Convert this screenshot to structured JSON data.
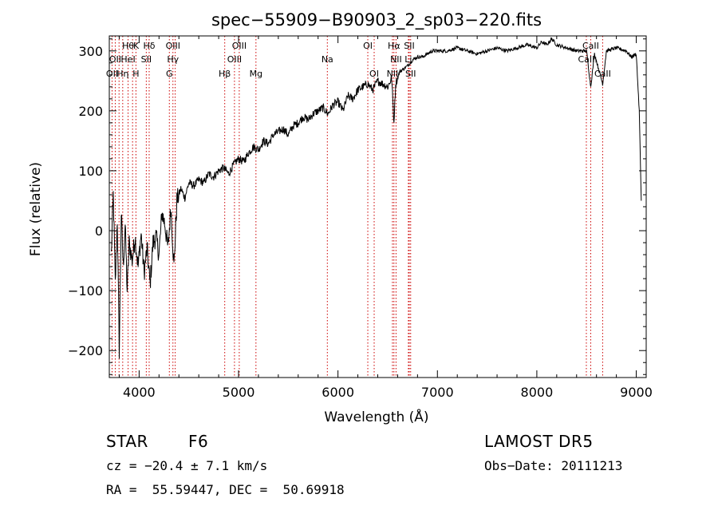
{
  "chart_data": {
    "type": "line",
    "title": "spec−55909−B90903_2_sp03−220.fits",
    "xlabel": "Wavelength (Å)",
    "ylabel": "Flux (relative)",
    "xlim": [
      3700,
      9100
    ],
    "ylim": [
      -245,
      325
    ],
    "xticks": [
      4000,
      5000,
      6000,
      7000,
      8000,
      9000
    ],
    "yticks": [
      -200,
      -100,
      0,
      100,
      200,
      300
    ],
    "ytick_labels": [
      "−200",
      "−100",
      "0",
      "100",
      "200",
      "300"
    ],
    "grid": false,
    "series": [
      {
        "color": "#000000",
        "x": [
          3720,
          3740,
          3760,
          3780,
          3800,
          3820,
          3840,
          3860,
          3880,
          3900,
          3930,
          3960,
          3990,
          4020,
          4050,
          4080,
          4110,
          4140,
          4170,
          4200,
          4230,
          4260,
          4290,
          4320,
          4350,
          4380,
          4420,
          4460,
          4500,
          4550,
          4600,
          4650,
          4700,
          4750,
          4800,
          4850,
          4900,
          4950,
          5000,
          5050,
          5100,
          5150,
          5200,
          5250,
          5300,
          5350,
          5400,
          5450,
          5500,
          5550,
          5600,
          5650,
          5700,
          5750,
          5800,
          5850,
          5900,
          5950,
          6000,
          6050,
          6100,
          6150,
          6200,
          6250,
          6300,
          6350,
          6400,
          6450,
          6500,
          6540,
          6563,
          6580,
          6620,
          6660,
          6700,
          6750,
          6800,
          6850,
          6900,
          6950,
          7000,
          7100,
          7200,
          7300,
          7400,
          7500,
          7600,
          7700,
          7800,
          7900,
          8000,
          8050,
          8100,
          8150,
          8200,
          8300,
          8400,
          8500,
          8542,
          8580,
          8662,
          8700,
          8800,
          8900,
          8950,
          9000,
          9030,
          9050
        ],
        "y": [
          -40,
          60,
          -90,
          20,
          -200,
          30,
          -60,
          10,
          -100,
          -20,
          -50,
          -10,
          -60,
          -5,
          -70,
          -30,
          -90,
          -20,
          -10,
          -40,
          30,
          10,
          -30,
          40,
          -60,
          50,
          70,
          55,
          80,
          75,
          85,
          80,
          95,
          90,
          100,
          105,
          95,
          110,
          120,
          115,
          130,
          140,
          135,
          150,
          145,
          160,
          165,
          170,
          160,
          175,
          180,
          190,
          185,
          195,
          200,
          205,
          195,
          210,
          215,
          200,
          225,
          220,
          235,
          240,
          245,
          235,
          250,
          245,
          240,
          255,
          180,
          245,
          265,
          270,
          275,
          285,
          290,
          290,
          295,
          300,
          300,
          300,
          305,
          300,
          295,
          300,
          305,
          300,
          305,
          310,
          305,
          315,
          310,
          320,
          310,
          305,
          300,
          300,
          240,
          295,
          245,
          300,
          305,
          300,
          290,
          295,
          200,
          50
        ]
      }
    ],
    "annotations": [
      {
        "row": 1,
        "x": 3890,
        "text": "Hθ"
      },
      {
        "row": 1,
        "x": 3970,
        "text": "K"
      },
      {
        "row": 1,
        "x": 4101,
        "text": "Hδ"
      },
      {
        "row": 1,
        "x": 4340,
        "text": "OIII"
      },
      {
        "row": 1,
        "x": 5007,
        "text": "OIII"
      },
      {
        "row": 1,
        "x": 6300,
        "text": "OI"
      },
      {
        "row": 1,
        "x": 6563,
        "text": "Hα"
      },
      {
        "row": 1,
        "x": 6717,
        "text": "SII"
      },
      {
        "row": 1,
        "x": 8542,
        "text": "CaII"
      },
      {
        "row": 2,
        "x": 3760,
        "text": "OII"
      },
      {
        "row": 2,
        "x": 3889,
        "text": "HeI"
      },
      {
        "row": 2,
        "x": 4072,
        "text": "SII"
      },
      {
        "row": 2,
        "x": 4340,
        "text": "Hγ"
      },
      {
        "row": 2,
        "x": 4959,
        "text": "OIII"
      },
      {
        "row": 2,
        "x": 5893,
        "text": "Na"
      },
      {
        "row": 2,
        "x": 6584,
        "text": "NII"
      },
      {
        "row": 2,
        "x": 6708,
        "text": "Li"
      },
      {
        "row": 2,
        "x": 8498,
        "text": "CaII"
      },
      {
        "row": 3,
        "x": 3728,
        "text": "OII"
      },
      {
        "row": 3,
        "x": 3835,
        "text": "Hη"
      },
      {
        "row": 3,
        "x": 3968,
        "text": "H"
      },
      {
        "row": 3,
        "x": 4304,
        "text": "G"
      },
      {
        "row": 3,
        "x": 4861,
        "text": "Hβ"
      },
      {
        "row": 3,
        "x": 5175,
        "text": "Mg"
      },
      {
        "row": 3,
        "x": 6364,
        "text": "OI"
      },
      {
        "row": 3,
        "x": 6548,
        "text": "NII"
      },
      {
        "row": 3,
        "x": 6731,
        "text": "SII"
      },
      {
        "row": 3,
        "x": 8662,
        "text": "CaII"
      }
    ],
    "line_markers": [
      3728,
      3760,
      3798,
      3835,
      3889,
      3934,
      3968,
      4072,
      4101,
      4304,
      4340,
      4363,
      4861,
      4959,
      5007,
      5175,
      5893,
      6300,
      6364,
      6548,
      6563,
      6584,
      6708,
      6717,
      6731,
      8498,
      8542,
      8662
    ],
    "marker_color": "#cc0000"
  },
  "info": {
    "class_label": "STAR",
    "subclass": "F6",
    "survey": "LAMOST DR5",
    "cz": "cz = −20.4 ± 7.1 km/s",
    "obs_date": "Obs−Date: 20111213",
    "radec": "RA =  55.59447, DEC =  50.69918"
  }
}
